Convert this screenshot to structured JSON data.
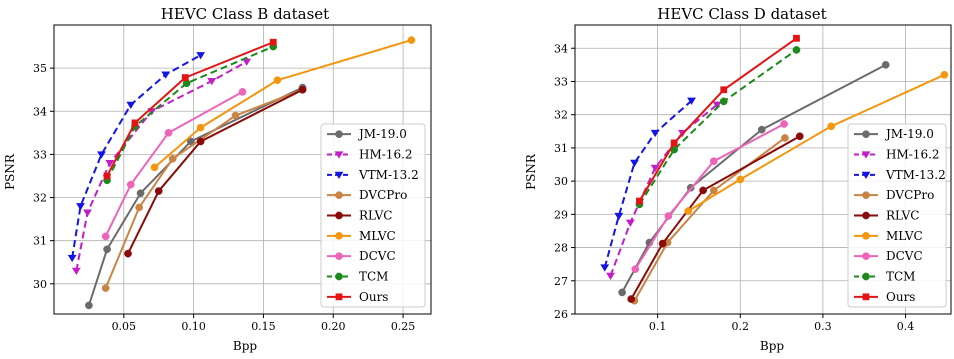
{
  "chart_data": [
    {
      "type": "line",
      "title": "HEVC Class B dataset",
      "xlabel": "Bpp",
      "ylabel": "PSNR",
      "xlim": [
        0.0,
        0.27
      ],
      "ylim": [
        29.3,
        36.0
      ],
      "xticks": [
        0.05,
        0.1,
        0.15,
        0.2,
        0.25
      ],
      "xtick_labels": [
        "0.05",
        "0.10",
        "0.15",
        "0.20",
        "0.25"
      ],
      "yticks": [
        30,
        31,
        32,
        33,
        34,
        35
      ],
      "ytick_labels": [
        "30",
        "31",
        "32",
        "33",
        "34",
        "35"
      ],
      "grid": true,
      "legend_position": "right",
      "series": [
        {
          "name": "JM-19.0",
          "color": "#6b6b6b",
          "dash": "solid",
          "marker": "circle",
          "x": [
            0.025,
            0.038,
            0.062,
            0.098,
            0.178
          ],
          "y": [
            29.5,
            30.8,
            32.1,
            33.3,
            34.55
          ]
        },
        {
          "name": "HM-16.2",
          "color": "#c21ec8",
          "dash": "dashed",
          "marker": "triangle-down",
          "x": [
            0.016,
            0.024,
            0.04,
            0.07,
            0.113,
            0.138
          ],
          "y": [
            30.3,
            31.65,
            32.8,
            34.0,
            34.7,
            35.15
          ]
        },
        {
          "name": "VTM-13.2",
          "color": "#1414e6",
          "dash": "dashed",
          "marker": "triangle-down",
          "x": [
            0.013,
            0.019,
            0.034,
            0.055,
            0.08,
            0.105
          ],
          "y": [
            30.6,
            31.8,
            33.0,
            34.15,
            34.85,
            35.3
          ]
        },
        {
          "name": "DVCPro",
          "color": "#c98445",
          "dash": "solid",
          "marker": "circle",
          "x": [
            0.037,
            0.061,
            0.085,
            0.13,
            0.178
          ],
          "y": [
            29.9,
            31.77,
            32.9,
            33.9,
            34.5
          ]
        },
        {
          "name": "RLVC",
          "color": "#8b0a0a",
          "dash": "solid",
          "marker": "circle",
          "x": [
            0.053,
            0.075,
            0.105,
            0.178
          ],
          "y": [
            30.7,
            32.15,
            33.3,
            34.5
          ]
        },
        {
          "name": "MLVC",
          "color": "#f5960f",
          "dash": "solid",
          "marker": "circle",
          "x": [
            0.072,
            0.105,
            0.16,
            0.256
          ],
          "y": [
            32.7,
            33.62,
            34.72,
            35.65
          ]
        },
        {
          "name": "DCVC",
          "color": "#ee64b8",
          "dash": "solid",
          "marker": "circle",
          "x": [
            0.037,
            0.055,
            0.082,
            0.135
          ],
          "y": [
            31.1,
            32.3,
            33.5,
            34.45
          ]
        },
        {
          "name": "TCM",
          "color": "#1a8a1a",
          "dash": "dashed",
          "marker": "circle",
          "x": [
            0.038,
            0.058,
            0.095,
            0.157
          ],
          "y": [
            32.4,
            33.65,
            34.65,
            35.5
          ]
        },
        {
          "name": "Ours",
          "color": "#e31414",
          "dash": "solid",
          "marker": "square",
          "x": [
            0.038,
            0.058,
            0.094,
            0.157
          ],
          "y": [
            32.5,
            33.73,
            34.78,
            35.6
          ]
        }
      ]
    },
    {
      "type": "line",
      "title": "HEVC Class D dataset",
      "xlabel": "Bpp",
      "ylabel": "PSNR",
      "xlim": [
        0.0,
        0.455
      ],
      "ylim": [
        26.0,
        34.7
      ],
      "xticks": [
        0.1,
        0.2,
        0.3,
        0.4
      ],
      "xtick_labels": [
        "0.1",
        "0.2",
        "0.3",
        "0.4"
      ],
      "yticks": [
        26,
        27,
        28,
        29,
        30,
        31,
        32,
        33,
        34
      ],
      "ytick_labels": [
        "26",
        "27",
        "28",
        "29",
        "30",
        "31",
        "32",
        "33",
        "34"
      ],
      "grid": true,
      "legend_position": "right",
      "series": [
        {
          "name": "JM-19.0",
          "color": "#6b6b6b",
          "dash": "solid",
          "marker": "circle",
          "x": [
            0.057,
            0.09,
            0.14,
            0.226,
            0.376
          ],
          "y": [
            26.65,
            28.15,
            29.8,
            31.55,
            33.5
          ]
        },
        {
          "name": "HM-16.2",
          "color": "#c21ec8",
          "dash": "dashed",
          "marker": "triangle-down",
          "x": [
            0.043,
            0.067,
            0.097,
            0.13,
            0.172
          ],
          "y": [
            27.15,
            28.75,
            30.4,
            31.45,
            32.3
          ]
        },
        {
          "name": "VTM-13.2",
          "color": "#1414e6",
          "dash": "dashed",
          "marker": "triangle-down",
          "x": [
            0.036,
            0.053,
            0.072,
            0.097,
            0.141
          ],
          "y": [
            27.4,
            28.95,
            30.55,
            31.45,
            32.42
          ]
        },
        {
          "name": "DVCPro",
          "color": "#c98445",
          "dash": "solid",
          "marker": "circle",
          "x": [
            0.072,
            0.112,
            0.168,
            0.254
          ],
          "y": [
            26.4,
            28.15,
            29.72,
            31.3
          ]
        },
        {
          "name": "RLVC",
          "color": "#8b0a0a",
          "dash": "solid",
          "marker": "circle",
          "x": [
            0.068,
            0.106,
            0.155,
            0.272
          ],
          "y": [
            26.45,
            28.12,
            29.72,
            31.35
          ]
        },
        {
          "name": "MLVC",
          "color": "#f5960f",
          "dash": "solid",
          "marker": "circle",
          "x": [
            0.137,
            0.2,
            0.31,
            0.447
          ],
          "y": [
            29.1,
            30.05,
            31.65,
            33.2
          ]
        },
        {
          "name": "DCVC",
          "color": "#ee64b8",
          "dash": "solid",
          "marker": "circle",
          "x": [
            0.073,
            0.113,
            0.168,
            0.253
          ],
          "y": [
            27.35,
            28.95,
            30.6,
            31.72
          ]
        },
        {
          "name": "TCM",
          "color": "#1a8a1a",
          "dash": "dashed",
          "marker": "circle",
          "x": [
            0.078,
            0.12,
            0.18,
            0.268
          ],
          "y": [
            29.3,
            30.95,
            32.4,
            33.95
          ]
        },
        {
          "name": "Ours",
          "color": "#e31414",
          "dash": "solid",
          "marker": "square",
          "x": [
            0.078,
            0.12,
            0.18,
            0.268
          ],
          "y": [
            29.4,
            31.15,
            32.75,
            34.3
          ]
        }
      ]
    }
  ]
}
